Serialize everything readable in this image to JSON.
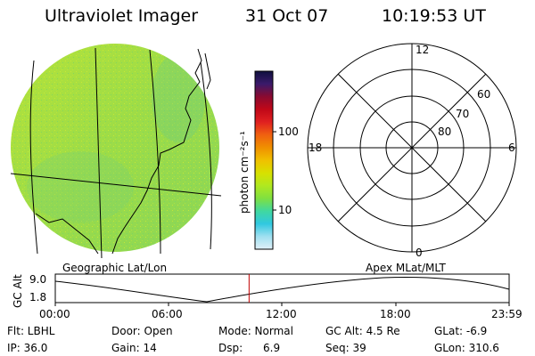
{
  "header": {
    "title": "Ultraviolet Imager",
    "date": "31 Oct 07",
    "time": "10:19:53 UT"
  },
  "colorbar": {
    "label": "photon cm⁻²s⁻¹",
    "ticks": [
      "100",
      "10"
    ],
    "colors": [
      "#101040",
      "#3a1a6a",
      "#8a0a30",
      "#c00818",
      "#e02020",
      "#f06010",
      "#f09000",
      "#f0c000",
      "#d8e000",
      "#b0e820",
      "#80e040",
      "#40d8a0",
      "#30c8e0",
      "#a0e0f0",
      "#e0f0f8"
    ]
  },
  "polar": {
    "mlt_labels": [
      "12",
      "18",
      "6",
      "0"
    ],
    "lat_labels": [
      "60",
      "70",
      "80"
    ]
  },
  "map": {
    "caption": "Geographic Lat/Lon",
    "caption_right": "Apex MLat/MLT",
    "disk_color": "#a8e03c"
  },
  "timeline": {
    "ylabel": "GC Alt",
    "ymax": "9.0",
    "ymin": "1.8",
    "xticks": [
      "00:00",
      "06:00",
      "12:00",
      "18:00",
      "23:59"
    ],
    "current_time_fraction": 0.427,
    "marker_color": "#c00000"
  },
  "info": {
    "flt": "Flt: LBHL",
    "door": "Door: Open",
    "mode": "Mode: Normal",
    "gcalt": "GC Alt: 4.5 Re",
    "glat": "GLat:  -6.9",
    "ip": "IP: 36.0",
    "gain": "Gain: 14",
    "dsp": "Dsp:      6.9",
    "seq": "Seq: 39",
    "glon": "GLon: 310.6"
  }
}
